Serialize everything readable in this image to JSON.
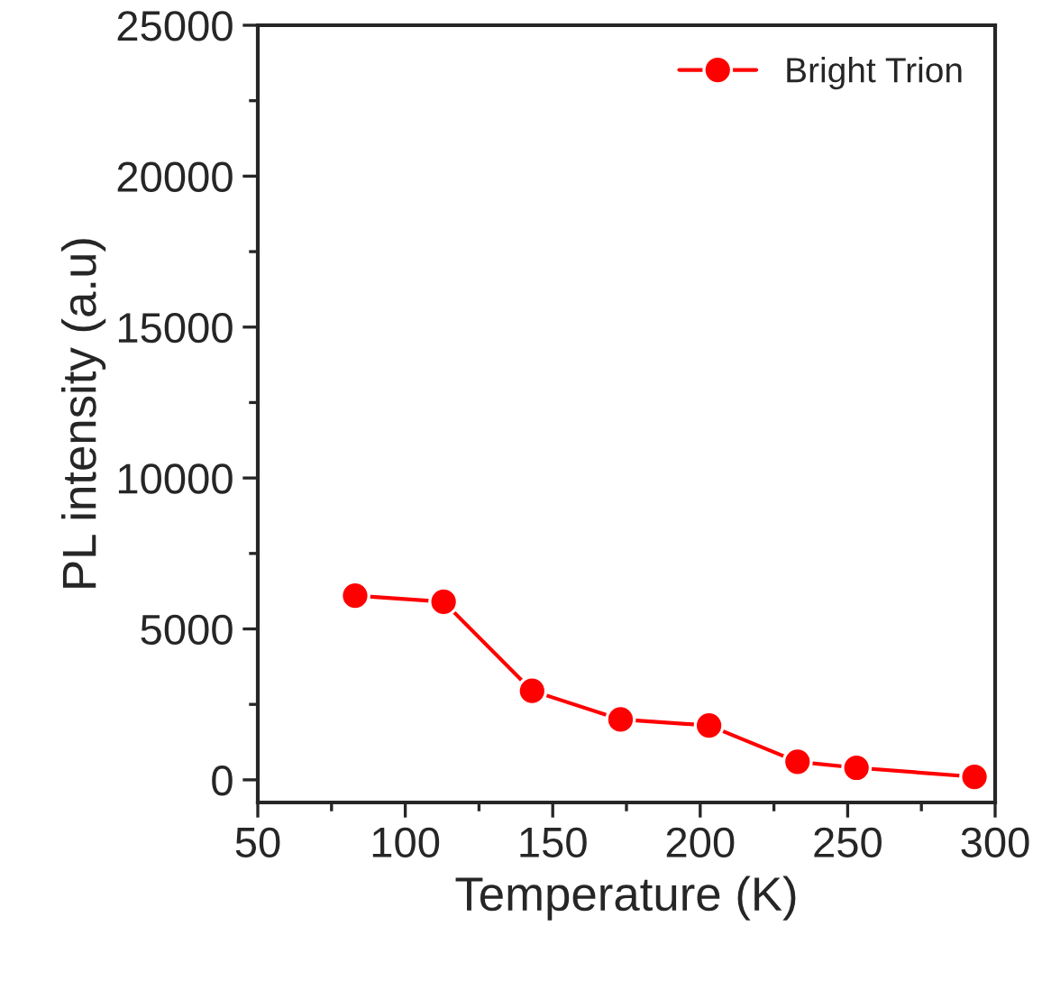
{
  "chart_data": {
    "type": "line",
    "xlabel": "Temperature (K)",
    "ylabel": "PL intensity (a.u)",
    "x": [
      83,
      113,
      143,
      173,
      203,
      233,
      253,
      293
    ],
    "series": [
      {
        "name": "Bright Trion",
        "color": "#ff0000",
        "values": [
          6100,
          5900,
          2950,
          2000,
          1800,
          600,
          400,
          100
        ]
      }
    ],
    "xlim": [
      50,
      300
    ],
    "xticks": [
      50,
      100,
      150,
      200,
      250,
      300
    ],
    "ylim": [
      -750,
      25000
    ],
    "yticks": [
      0,
      5000,
      10000,
      15000,
      20000,
      25000
    ],
    "marker": "circle",
    "line_style": "solid",
    "legend": "top right",
    "grid": false
  }
}
